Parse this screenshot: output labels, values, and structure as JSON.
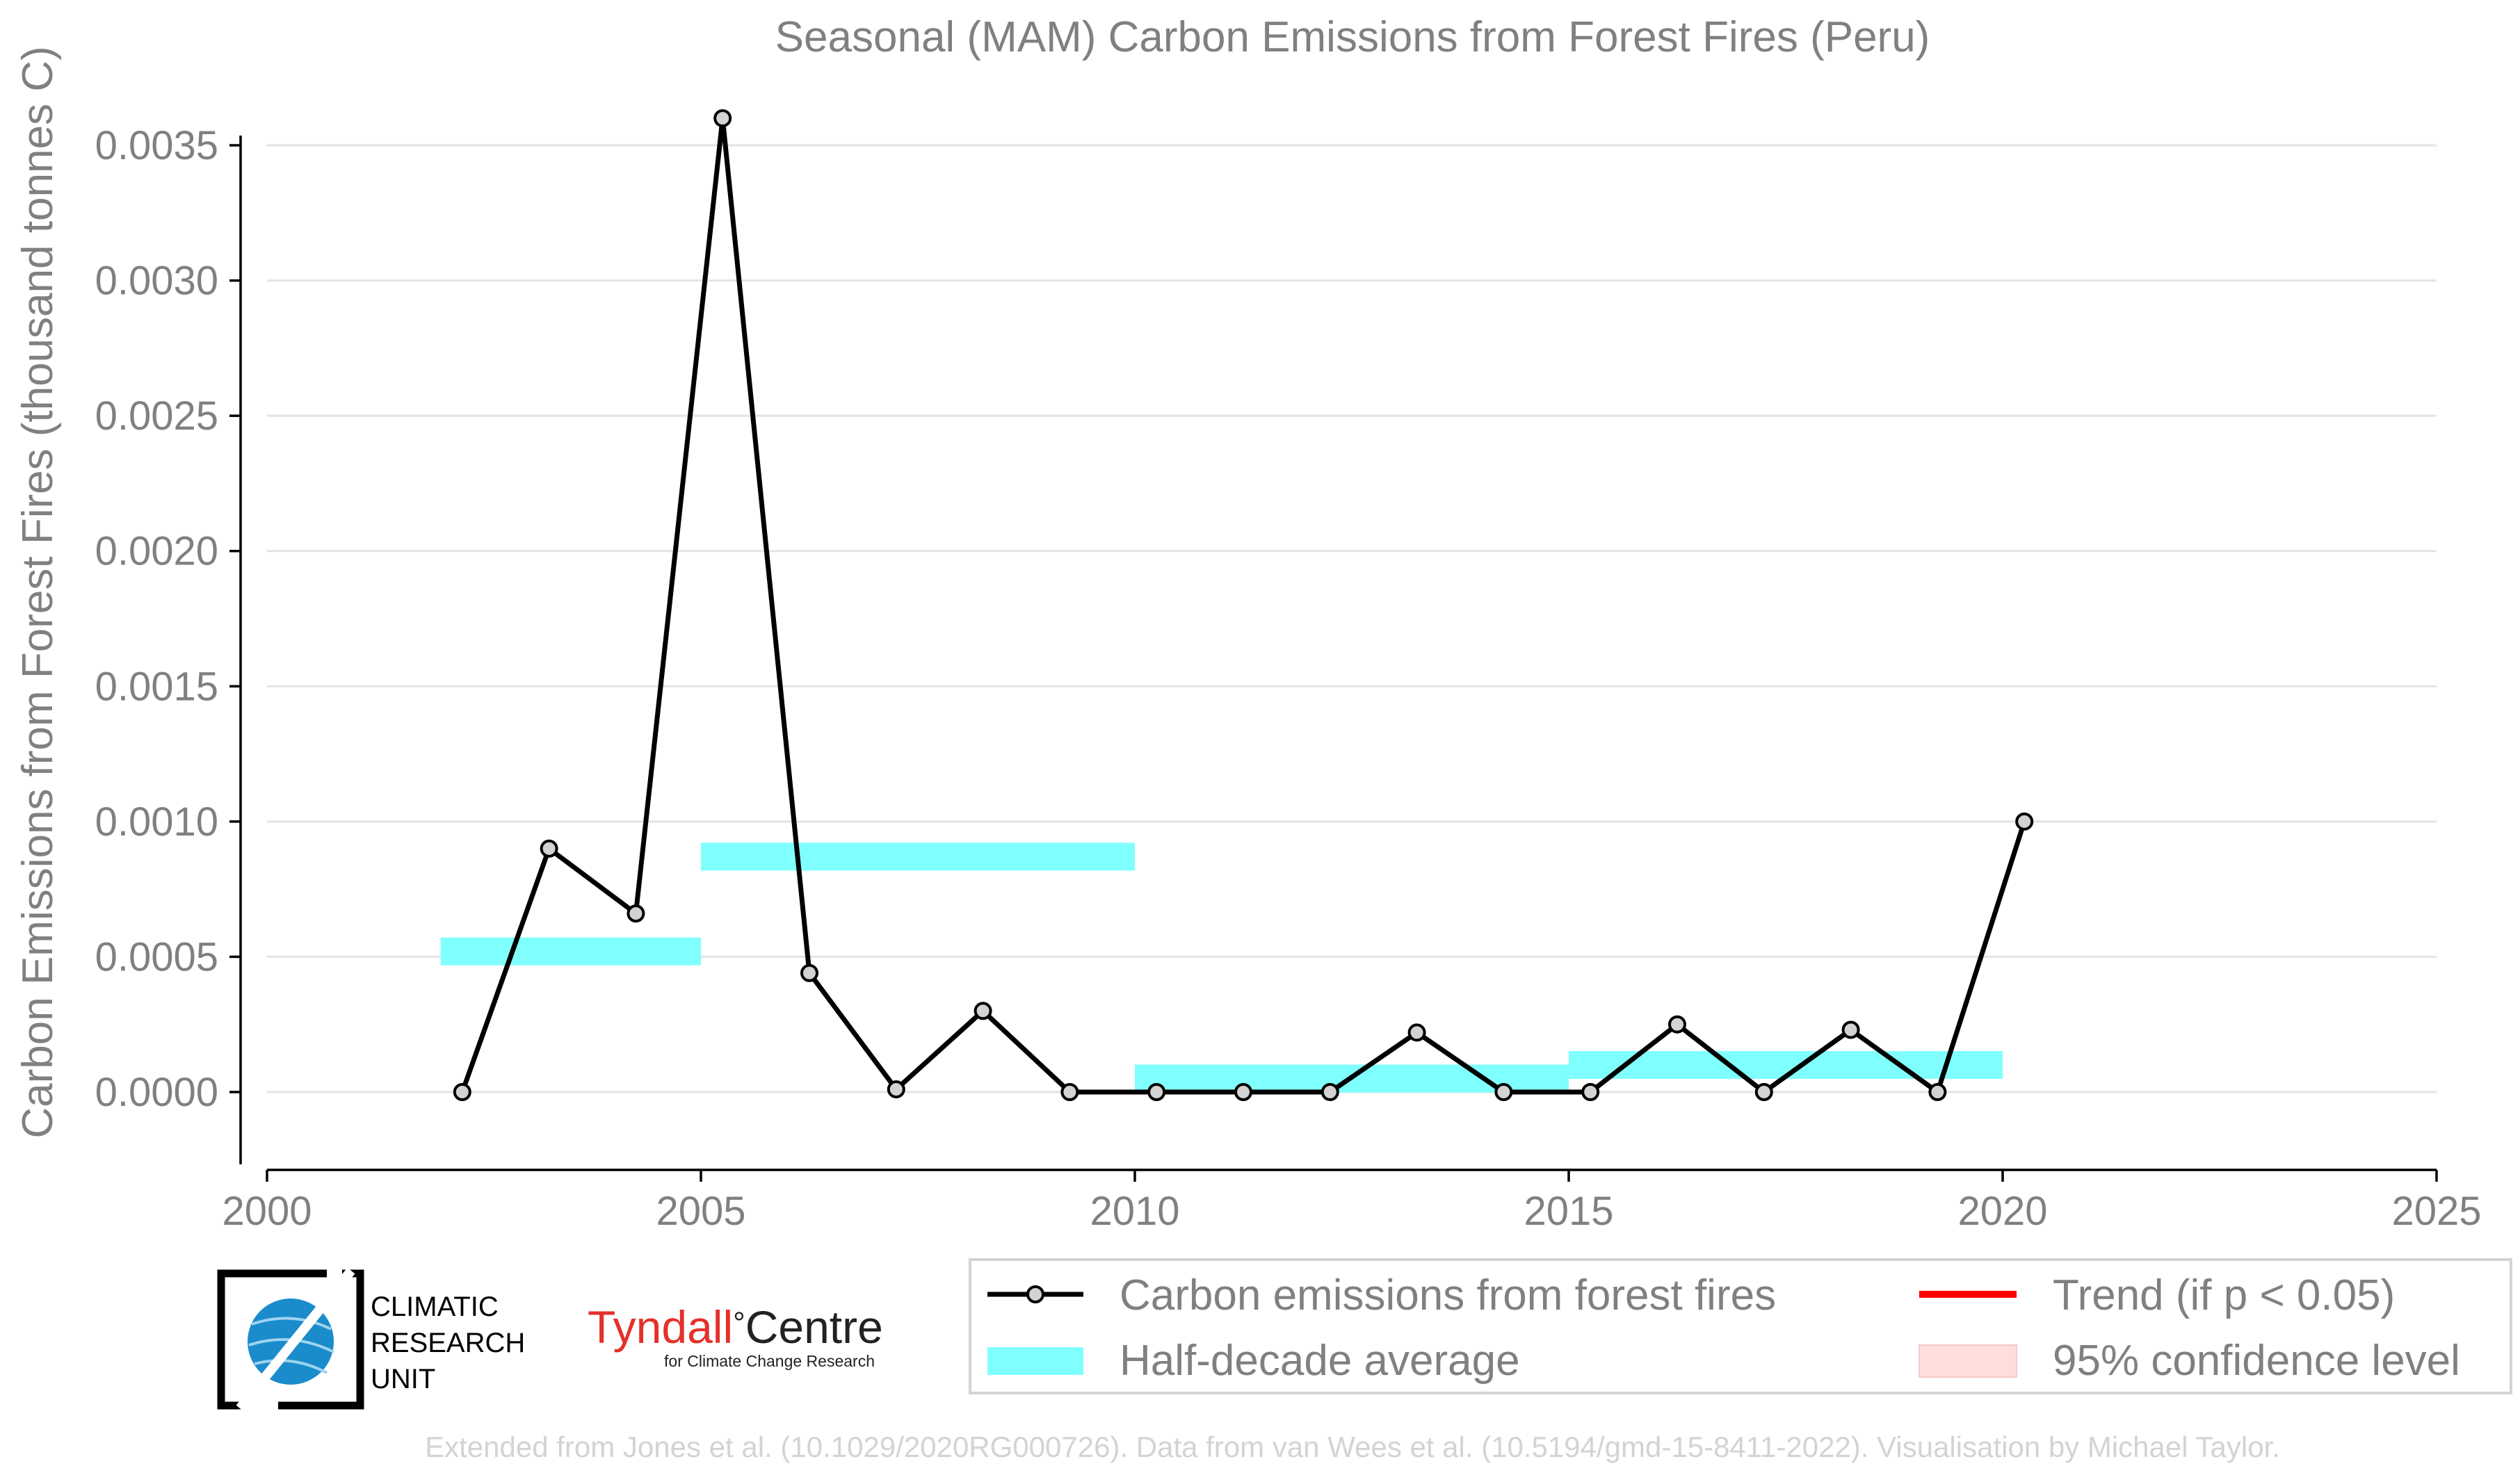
{
  "chart_data": {
    "type": "line",
    "title": "Seasonal (MAM) Carbon Emissions from Forest Fires (Peru)",
    "ylabel": "Carbon Emissions from Forest Fires (thousand tonnes C)",
    "xlabel": "",
    "xlim": [
      2000,
      2025
    ],
    "ylim": [
      -0.00029,
      0.0036
    ],
    "x_ticks": [
      2000,
      2005,
      2010,
      2015,
      2020,
      2025
    ],
    "x_tick_labels": [
      "2000",
      "2005",
      "2010",
      "2015",
      "2020",
      "2025"
    ],
    "y_ticks": [
      0.0,
      0.0005,
      0.001,
      0.0015,
      0.002,
      0.0025,
      0.003,
      0.0035
    ],
    "y_tick_labels": [
      "0.0000",
      "0.0005",
      "0.0010",
      "0.0015",
      "0.0020",
      "0.0025",
      "0.0030",
      "0.0035"
    ],
    "grid": "horizontal",
    "series": [
      {
        "name": "Carbon emissions from forest fires",
        "color": "#000000",
        "marker_color": "#d3d3d3",
        "x": [
          2002.25,
          2003.25,
          2004.25,
          2005.25,
          2006.25,
          2007.25,
          2008.25,
          2009.25,
          2010.25,
          2011.25,
          2012.25,
          2013.25,
          2014.25,
          2015.25,
          2016.25,
          2017.25,
          2018.25,
          2019.25,
          2020.25
        ],
        "y": [
          0.0,
          0.0009,
          0.00066,
          0.0036,
          0.00044,
          1e-05,
          0.0003,
          0.0,
          0.0,
          0.0,
          0.0,
          0.00022,
          0.0,
          0.0,
          0.00025,
          0.0,
          0.00023,
          0.0,
          0.001
        ]
      }
    ],
    "half_decade_average": {
      "name": "Half-decade average",
      "color": "#80ffff",
      "segments": [
        {
          "x0": 2002,
          "x1": 2005,
          "y": 0.00052
        },
        {
          "x0": 2005,
          "x1": 2010,
          "y": 0.00087
        },
        {
          "x0": 2010,
          "x1": 2015,
          "y": 5e-05
        },
        {
          "x0": 2015,
          "x1": 2020,
          "y": 0.0001
        }
      ]
    },
    "legend": {
      "placement": "bottom-right",
      "entries": [
        {
          "label": "Carbon emissions from forest fires",
          "style": "line-marker",
          "color": "#000000"
        },
        {
          "label": "Trend (if p < 0.05)",
          "style": "line",
          "color": "#ff0000"
        },
        {
          "label": "Half-decade average",
          "style": "band",
          "color": "#80ffff"
        },
        {
          "label": "95% confidence level",
          "style": "band",
          "color": "#ffdddd"
        }
      ]
    },
    "credit": "Extended from Jones et al. (10.1029/2020RG000726). Data from van Wees et al. (10.5194/gmd-15-8411-2022). Visualisation by Michael Taylor."
  },
  "logos": {
    "cru": {
      "line1": "CLIMATIC",
      "line2": "RESEARCH",
      "line3": "UNIT",
      "globe_color": "#1a8ccc"
    },
    "tyndall": {
      "name": "Tyndall",
      "degree": "°",
      "suffix": "Centre",
      "subtitle": "for Climate Change Research",
      "name_color": "#e4302b",
      "suffix_color": "#222222"
    }
  }
}
